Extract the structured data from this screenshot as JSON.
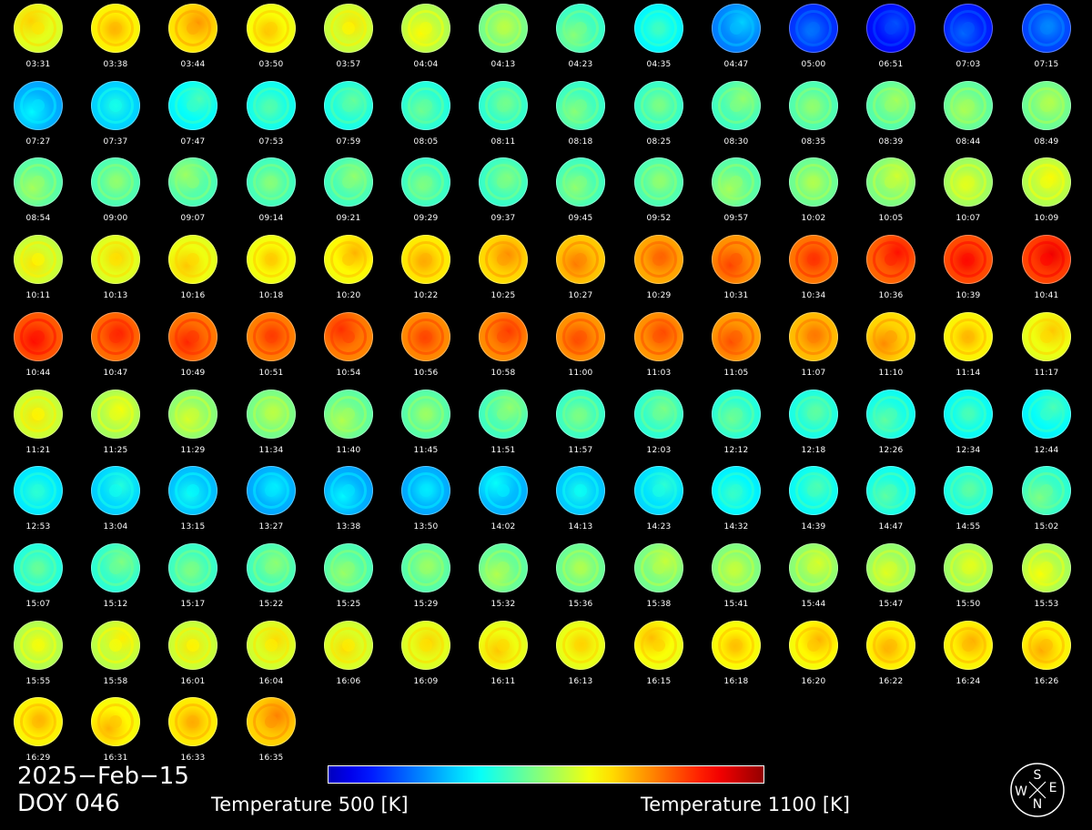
{
  "date_text": "2025−Feb−15",
  "doy_text": "DOY 046",
  "colorbar": {
    "min_label": "Temperature 500 [K]",
    "max_label": "Temperature 1100 [K]",
    "min_value": 500,
    "max_value": 1100,
    "unit": "K",
    "colormap": "jet"
  },
  "compass": {
    "top": "S",
    "left": "W",
    "right": "E",
    "bottom": "N"
  },
  "frames": [
    {
      "time": "03:31",
      "level": 0.62
    },
    {
      "time": "03:38",
      "level": 0.66
    },
    {
      "time": "03:44",
      "level": 0.68
    },
    {
      "time": "03:50",
      "level": 0.64
    },
    {
      "time": "03:57",
      "level": 0.6
    },
    {
      "time": "04:04",
      "level": 0.58
    },
    {
      "time": "04:13",
      "level": 0.52
    },
    {
      "time": "04:23",
      "level": 0.46
    },
    {
      "time": "04:35",
      "level": 0.4
    },
    {
      "time": "04:47",
      "level": 0.28
    },
    {
      "time": "05:00",
      "level": 0.2
    },
    {
      "time": "06:51",
      "level": 0.16
    },
    {
      "time": "07:03",
      "level": 0.18
    },
    {
      "time": "07:15",
      "level": 0.22
    },
    {
      "time": "07:27",
      "level": 0.32
    },
    {
      "time": "07:37",
      "level": 0.36
    },
    {
      "time": "07:47",
      "level": 0.4
    },
    {
      "time": "07:53",
      "level": 0.42
    },
    {
      "time": "07:59",
      "level": 0.43
    },
    {
      "time": "08:05",
      "level": 0.44
    },
    {
      "time": "08:11",
      "level": 0.45
    },
    {
      "time": "08:18",
      "level": 0.46
    },
    {
      "time": "08:25",
      "level": 0.46
    },
    {
      "time": "08:30",
      "level": 0.47
    },
    {
      "time": "08:35",
      "level": 0.48
    },
    {
      "time": "08:39",
      "level": 0.49
    },
    {
      "time": "08:44",
      "level": 0.5
    },
    {
      "time": "08:49",
      "level": 0.51
    },
    {
      "time": "08:54",
      "level": 0.49
    },
    {
      "time": "09:00",
      "level": 0.48
    },
    {
      "time": "09:07",
      "level": 0.48
    },
    {
      "time": "09:14",
      "level": 0.47
    },
    {
      "time": "09:21",
      "level": 0.47
    },
    {
      "time": "09:29",
      "level": 0.46
    },
    {
      "time": "09:37",
      "level": 0.46
    },
    {
      "time": "09:45",
      "level": 0.47
    },
    {
      "time": "09:52",
      "level": 0.48
    },
    {
      "time": "09:57",
      "level": 0.49
    },
    {
      "time": "10:02",
      "level": 0.51
    },
    {
      "time": "10:05",
      "level": 0.53
    },
    {
      "time": "10:07",
      "level": 0.56
    },
    {
      "time": "10:09",
      "level": 0.58
    },
    {
      "time": "10:11",
      "level": 0.6
    },
    {
      "time": "10:13",
      "level": 0.62
    },
    {
      "time": "10:16",
      "level": 0.63
    },
    {
      "time": "10:18",
      "level": 0.64
    },
    {
      "time": "10:20",
      "level": 0.65
    },
    {
      "time": "10:22",
      "level": 0.67
    },
    {
      "time": "10:25",
      "level": 0.69
    },
    {
      "time": "10:27",
      "level": 0.71
    },
    {
      "time": "10:29",
      "level": 0.74
    },
    {
      "time": "10:31",
      "level": 0.76
    },
    {
      "time": "10:34",
      "level": 0.79
    },
    {
      "time": "10:36",
      "level": 0.81
    },
    {
      "time": "10:39",
      "level": 0.83
    },
    {
      "time": "10:41",
      "level": 0.84
    },
    {
      "time": "10:44",
      "level": 0.82
    },
    {
      "time": "10:47",
      "level": 0.8
    },
    {
      "time": "10:49",
      "level": 0.79
    },
    {
      "time": "10:51",
      "level": 0.78
    },
    {
      "time": "10:54",
      "level": 0.78
    },
    {
      "time": "10:56",
      "level": 0.77
    },
    {
      "time": "10:58",
      "level": 0.77
    },
    {
      "time": "11:00",
      "level": 0.76
    },
    {
      "time": "11:03",
      "level": 0.76
    },
    {
      "time": "11:05",
      "level": 0.75
    },
    {
      "time": "11:07",
      "level": 0.72
    },
    {
      "time": "11:10",
      "level": 0.69
    },
    {
      "time": "11:14",
      "level": 0.66
    },
    {
      "time": "11:17",
      "level": 0.63
    },
    {
      "time": "11:21",
      "level": 0.6
    },
    {
      "time": "11:25",
      "level": 0.57
    },
    {
      "time": "11:29",
      "level": 0.54
    },
    {
      "time": "11:34",
      "level": 0.52
    },
    {
      "time": "11:40",
      "level": 0.5
    },
    {
      "time": "11:45",
      "level": 0.49
    },
    {
      "time": "11:51",
      "level": 0.47
    },
    {
      "time": "11:57",
      "level": 0.46
    },
    {
      "time": "12:03",
      "level": 0.45
    },
    {
      "time": "12:12",
      "level": 0.44
    },
    {
      "time": "12:18",
      "level": 0.43
    },
    {
      "time": "12:26",
      "level": 0.42
    },
    {
      "time": "12:34",
      "level": 0.41
    },
    {
      "time": "12:44",
      "level": 0.4
    },
    {
      "time": "12:53",
      "level": 0.38
    },
    {
      "time": "13:04",
      "level": 0.36
    },
    {
      "time": "13:15",
      "level": 0.34
    },
    {
      "time": "13:27",
      "level": 0.32
    },
    {
      "time": "13:38",
      "level": 0.32
    },
    {
      "time": "13:50",
      "level": 0.32
    },
    {
      "time": "14:02",
      "level": 0.33
    },
    {
      "time": "14:13",
      "level": 0.35
    },
    {
      "time": "14:23",
      "level": 0.37
    },
    {
      "time": "14:32",
      "level": 0.39
    },
    {
      "time": "14:39",
      "level": 0.41
    },
    {
      "time": "14:47",
      "level": 0.42
    },
    {
      "time": "14:55",
      "level": 0.43
    },
    {
      "time": "15:02",
      "level": 0.45
    },
    {
      "time": "15:07",
      "level": 0.44
    },
    {
      "time": "15:12",
      "level": 0.45
    },
    {
      "time": "15:17",
      "level": 0.46
    },
    {
      "time": "15:22",
      "level": 0.47
    },
    {
      "time": "15:25",
      "level": 0.48
    },
    {
      "time": "15:29",
      "level": 0.49
    },
    {
      "time": "15:32",
      "level": 0.5
    },
    {
      "time": "15:36",
      "level": 0.51
    },
    {
      "time": "15:38",
      "level": 0.52
    },
    {
      "time": "15:41",
      "level": 0.53
    },
    {
      "time": "15:44",
      "level": 0.54
    },
    {
      "time": "15:47",
      "level": 0.55
    },
    {
      "time": "15:50",
      "level": 0.56
    },
    {
      "time": "15:53",
      "level": 0.57
    },
    {
      "time": "15:55",
      "level": 0.58
    },
    {
      "time": "15:58",
      "level": 0.59
    },
    {
      "time": "16:01",
      "level": 0.6
    },
    {
      "time": "16:04",
      "level": 0.61
    },
    {
      "time": "16:06",
      "level": 0.61
    },
    {
      "time": "16:09",
      "level": 0.62
    },
    {
      "time": "16:11",
      "level": 0.63
    },
    {
      "time": "16:13",
      "level": 0.63
    },
    {
      "time": "16:15",
      "level": 0.64
    },
    {
      "time": "16:18",
      "level": 0.65
    },
    {
      "time": "16:20",
      "level": 0.65
    },
    {
      "time": "16:22",
      "level": 0.66
    },
    {
      "time": "16:24",
      "level": 0.66
    },
    {
      "time": "16:26",
      "level": 0.66
    },
    {
      "time": "16:29",
      "level": 0.66
    },
    {
      "time": "16:31",
      "level": 0.65
    },
    {
      "time": "16:33",
      "level": 0.67
    },
    {
      "time": "16:35",
      "level": 0.7
    }
  ]
}
